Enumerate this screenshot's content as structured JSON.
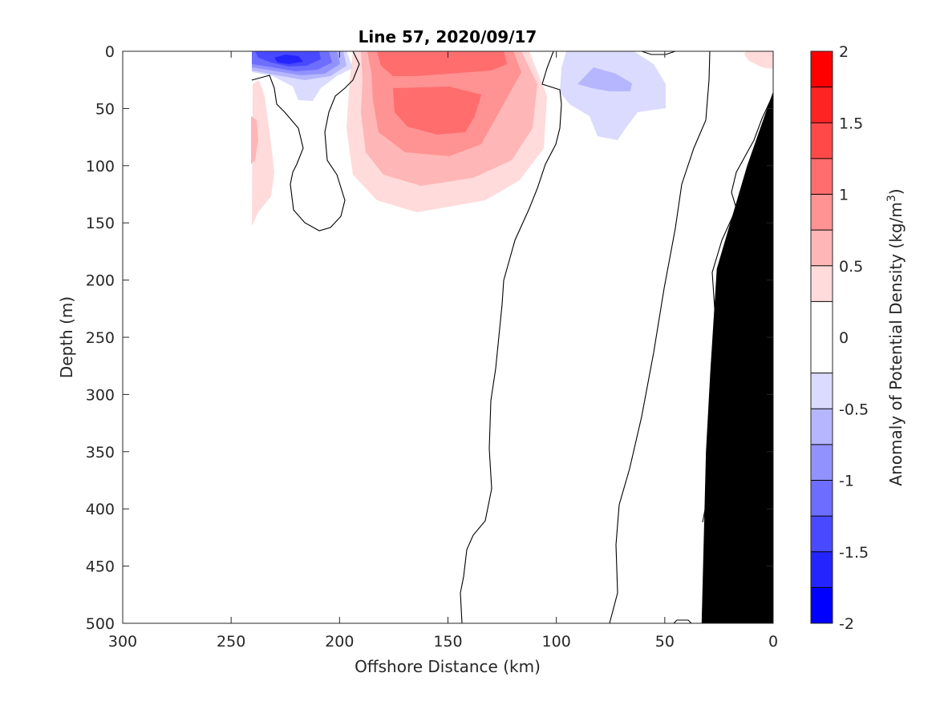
{
  "chart_data": {
    "type": "heatmap",
    "subtype": "filled-contour-section",
    "title": "Line 57, 2020/09/17",
    "xlabel": "Offshore Distance (km)",
    "ylabel": "Depth (m)",
    "xlim": [
      300,
      0
    ],
    "ylim": [
      500,
      0
    ],
    "x_reversed": true,
    "y_reversed": true,
    "x_ticks": [
      300,
      250,
      200,
      150,
      100,
      50,
      0
    ],
    "y_ticks": [
      0,
      50,
      100,
      150,
      200,
      250,
      300,
      350,
      400,
      450,
      500
    ],
    "x_tick_labels": [
      "300",
      "250",
      "200",
      "150",
      "100",
      "50",
      "0"
    ],
    "y_tick_labels": [
      "0",
      "50",
      "100",
      "150",
      "200",
      "250",
      "300",
      "350",
      "400",
      "450",
      "500"
    ],
    "colorbar": {
      "label": "Anomaly of Potential Density (kg/m",
      "label_superscript": "3",
      "label_suffix": ")",
      "range": [
        -2,
        2
      ],
      "levels": [
        -2,
        -1.75,
        -1.5,
        -1.25,
        -1,
        -0.75,
        -0.5,
        -0.25,
        0.25,
        0.5,
        0.75,
        1,
        1.25,
        1.5,
        1.75,
        2
      ],
      "ticks": [
        2,
        1.5,
        1,
        0.5,
        0,
        -0.5,
        -1,
        -1.5,
        -2
      ],
      "tick_labels": [
        "2",
        "1.5",
        "1",
        "0.5",
        "0",
        "-0.5",
        "-1",
        "-1.5",
        "-2"
      ],
      "colors": [
        "#0000ff",
        "#2424ff",
        "#4949ff",
        "#6d6dff",
        "#9292ff",
        "#b6b6ff",
        "#dbdbff",
        "#ffffff",
        "#ffdbdb",
        "#ffb6b6",
        "#ff9292",
        "#ff6d6d",
        "#ff4949",
        "#ff2424",
        "#ff0000"
      ]
    },
    "features": [
      {
        "name": "negative anomaly core near surface",
        "x_range": [
          243,
          195
        ],
        "depth_range": [
          0,
          40
        ],
        "min_value": -1.5
      },
      {
        "name": "positive anomaly lens",
        "x_range": [
          196,
          100
        ],
        "depth_range": [
          0,
          140
        ],
        "max_value": 1.25
      },
      {
        "name": "negative anomaly",
        "x_range": [
          100,
          50
        ],
        "depth_range": [
          0,
          80
        ],
        "min_value": -0.75
      },
      {
        "name": "weak positive anomaly",
        "x_range": [
          240,
          230
        ],
        "depth_range": [
          30,
          150
        ],
        "max_value": 0.75
      },
      {
        "name": "weak positive anomaly near coast",
        "x_range": [
          13,
          0
        ],
        "depth_range": [
          0,
          15
        ],
        "max_value": 0.5
      }
    ],
    "bathymetry": {
      "fill": "#000000",
      "offshore_km": [
        0,
        0,
        12,
        19,
        26,
        29,
        31,
        33
      ],
      "depth_m": [
        500,
        35,
        100,
        145,
        190,
        280,
        350,
        500
      ]
    }
  }
}
